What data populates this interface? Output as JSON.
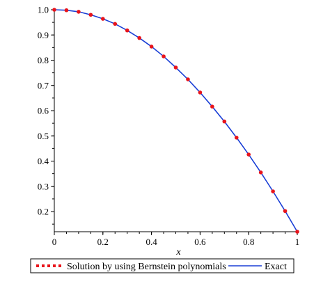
{
  "chart_data": {
    "type": "line",
    "xlabel": "x",
    "ylabel": "",
    "xlim": [
      0,
      1
    ],
    "ylim": [
      0.12,
      1.0
    ],
    "x_ticks": [
      "0",
      "0.2",
      "0.4",
      "0.6",
      "0.8",
      "1"
    ],
    "y_ticks": [
      "0.2",
      "0.3",
      "0.4",
      "0.5",
      "0.6",
      "0.7",
      "0.8",
      "0.9",
      "1.0"
    ],
    "grid": false,
    "legend_position": "bottom",
    "series": [
      {
        "name": "Solution by using Bernstein polynomials",
        "style": "dotted",
        "color": "#e8141b",
        "x": [
          0,
          0.05,
          0.1,
          0.15,
          0.2,
          0.25,
          0.3,
          0.35,
          0.4,
          0.45,
          0.5,
          0.55,
          0.6,
          0.65,
          0.7,
          0.75,
          0.8,
          0.85,
          0.9,
          0.95,
          1.0
        ],
        "y": [
          1.0,
          0.998,
          0.992,
          0.98,
          0.964,
          0.944,
          0.918,
          0.888,
          0.854,
          0.815,
          0.771,
          0.724,
          0.672,
          0.616,
          0.557,
          0.493,
          0.426,
          0.355,
          0.28,
          0.202,
          0.12
        ]
      },
      {
        "name": "Exact",
        "style": "solid",
        "color": "#1a3fd6",
        "x": [
          0,
          0.05,
          0.1,
          0.15,
          0.2,
          0.25,
          0.3,
          0.35,
          0.4,
          0.45,
          0.5,
          0.55,
          0.6,
          0.65,
          0.7,
          0.75,
          0.8,
          0.85,
          0.9,
          0.95,
          1.0
        ],
        "y": [
          1.0,
          0.998,
          0.992,
          0.98,
          0.964,
          0.944,
          0.918,
          0.888,
          0.854,
          0.815,
          0.771,
          0.724,
          0.672,
          0.616,
          0.557,
          0.493,
          0.426,
          0.355,
          0.28,
          0.202,
          0.12
        ]
      }
    ]
  }
}
